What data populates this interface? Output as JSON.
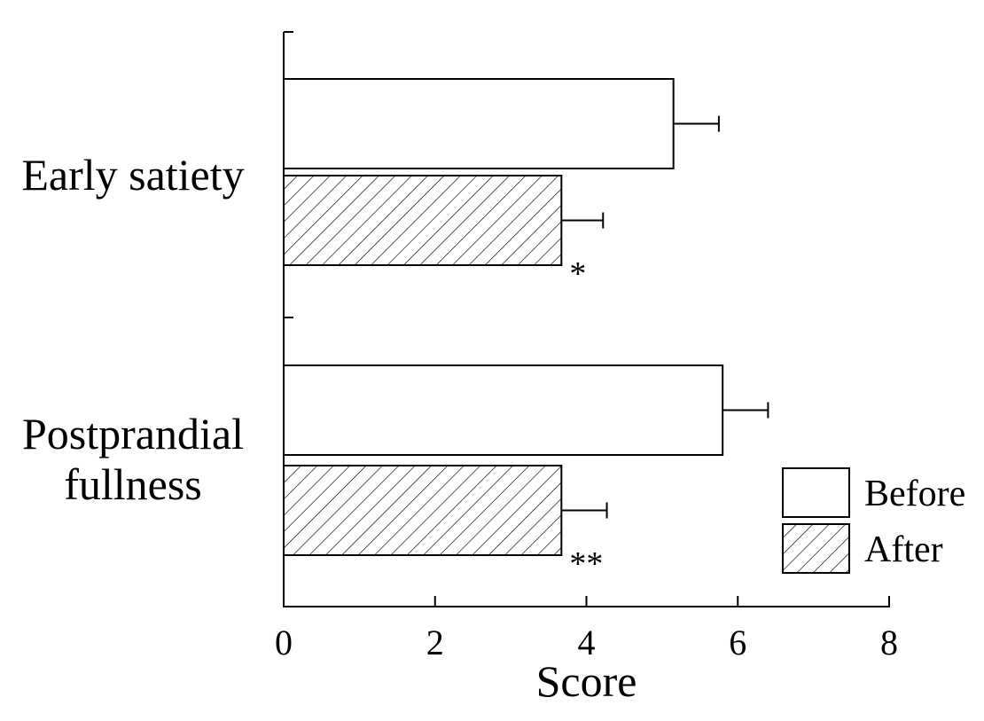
{
  "chart_data": {
    "type": "bar",
    "orientation": "horizontal",
    "categories": [
      "Early satiety",
      "Postprandial fullness"
    ],
    "category_lines": [
      [
        "Early satiety"
      ],
      [
        "Postprandial",
        "fullness"
      ]
    ],
    "series": [
      {
        "name": "Before",
        "values": [
          5.15,
          5.8
        ],
        "errors": [
          0.6,
          0.6
        ],
        "fill": "white"
      },
      {
        "name": "After",
        "values": [
          3.67,
          3.67
        ],
        "errors": [
          0.55,
          0.6
        ],
        "fill": "hatched"
      }
    ],
    "annotations": [
      [
        "",
        "*"
      ],
      [
        "",
        "**"
      ]
    ],
    "xlabel": "Score",
    "ylabel": "",
    "title": "",
    "xlim": [
      0,
      8
    ],
    "xticks": [
      0,
      2,
      4,
      6,
      8
    ],
    "grid": false,
    "legend_position": "bottom-right"
  }
}
